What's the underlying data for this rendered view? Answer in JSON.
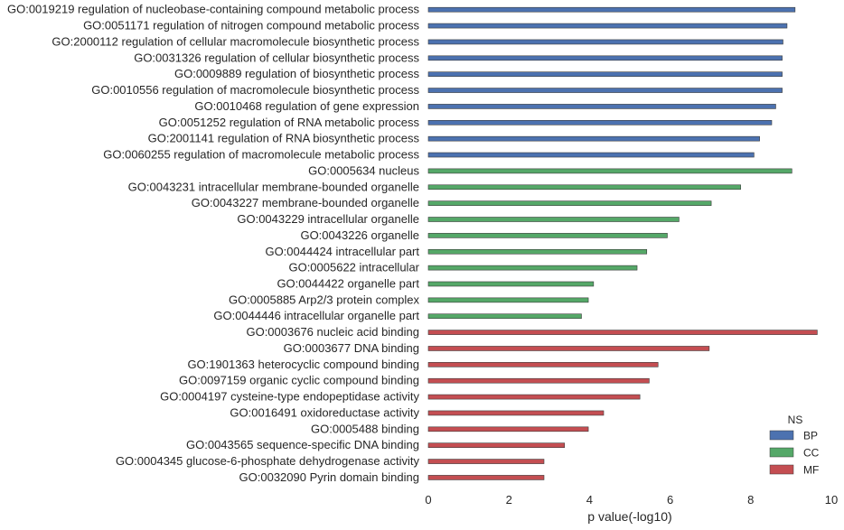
{
  "chart_data": {
    "type": "bar",
    "orientation": "horizontal",
    "xlabel": "p value(-log10)",
    "ylabel": "",
    "xlim": [
      0,
      10
    ],
    "xticks": [
      "0",
      "2",
      "4",
      "6",
      "8",
      "10"
    ],
    "grid": false,
    "legend": {
      "title": "NS",
      "placement": "bottom-right",
      "entries": [
        {
          "name": "BP",
          "color": "#4c72b0"
        },
        {
          "name": "CC",
          "color": "#55a868"
        },
        {
          "name": "MF",
          "color": "#c44e52"
        }
      ]
    },
    "categories": [
      {
        "label": "GO:0019219 regulation of nucleobase-containing compound metabolic process",
        "value": 9.1,
        "ns": "BP"
      },
      {
        "label": "GO:0051171 regulation of nitrogen compound metabolic process",
        "value": 8.9,
        "ns": "BP"
      },
      {
        "label": "GO:2000112 regulation of cellular macromolecule biosynthetic process",
        "value": 8.8,
        "ns": "BP"
      },
      {
        "label": "GO:0031326 regulation of cellular biosynthetic process",
        "value": 8.78,
        "ns": "BP"
      },
      {
        "label": "GO:0009889 regulation of biosynthetic process",
        "value": 8.78,
        "ns": "BP"
      },
      {
        "label": "GO:0010556 regulation of macromolecule biosynthetic process",
        "value": 8.78,
        "ns": "BP"
      },
      {
        "label": "GO:0010468 regulation of gene expression",
        "value": 8.62,
        "ns": "BP"
      },
      {
        "label": "GO:0051252 regulation of RNA metabolic process",
        "value": 8.52,
        "ns": "BP"
      },
      {
        "label": "GO:2001141 regulation of RNA biosynthetic process",
        "value": 8.22,
        "ns": "BP"
      },
      {
        "label": "GO:0060255 regulation of macromolecule metabolic process",
        "value": 8.08,
        "ns": "BP"
      },
      {
        "label": "GO:0005634 nucleus",
        "value": 9.02,
        "ns": "CC"
      },
      {
        "label": "GO:0043231 intracellular membrane-bounded organelle",
        "value": 7.75,
        "ns": "CC"
      },
      {
        "label": "GO:0043227 membrane-bounded organelle",
        "value": 7.02,
        "ns": "CC"
      },
      {
        "label": "GO:0043229 intracellular organelle",
        "value": 6.22,
        "ns": "CC"
      },
      {
        "label": "GO:0043226 organelle",
        "value": 5.93,
        "ns": "CC"
      },
      {
        "label": "GO:0044424 intracellular part",
        "value": 5.42,
        "ns": "CC"
      },
      {
        "label": "GO:0005622 intracellular",
        "value": 5.18,
        "ns": "CC"
      },
      {
        "label": "GO:0044422 organelle part",
        "value": 4.1,
        "ns": "CC"
      },
      {
        "label": "GO:0005885 Arp2/3 protein complex",
        "value": 3.97,
        "ns": "CC"
      },
      {
        "label": "GO:0044446 intracellular organelle part",
        "value": 3.8,
        "ns": "CC"
      },
      {
        "label": "GO:0003676 nucleic acid binding",
        "value": 9.65,
        "ns": "MF"
      },
      {
        "label": "GO:0003677 DNA binding",
        "value": 6.97,
        "ns": "MF"
      },
      {
        "label": "GO:1901363 heterocyclic compound binding",
        "value": 5.7,
        "ns": "MF"
      },
      {
        "label": "GO:0097159 organic cyclic compound binding",
        "value": 5.48,
        "ns": "MF"
      },
      {
        "label": "GO:0004197 cysteine-type endopeptidase activity",
        "value": 5.25,
        "ns": "MF"
      },
      {
        "label": "GO:0016491 oxidoreductase activity",
        "value": 4.35,
        "ns": "MF"
      },
      {
        "label": "GO:0005488 binding",
        "value": 3.97,
        "ns": "MF"
      },
      {
        "label": "GO:0043565 sequence-specific DNA binding",
        "value": 3.38,
        "ns": "MF"
      },
      {
        "label": "GO:0004345 glucose-6-phosphate dehydrogenase activity",
        "value": 2.87,
        "ns": "MF"
      },
      {
        "label": "GO:0032090 Pyrin domain binding",
        "value": 2.87,
        "ns": "MF"
      }
    ]
  }
}
